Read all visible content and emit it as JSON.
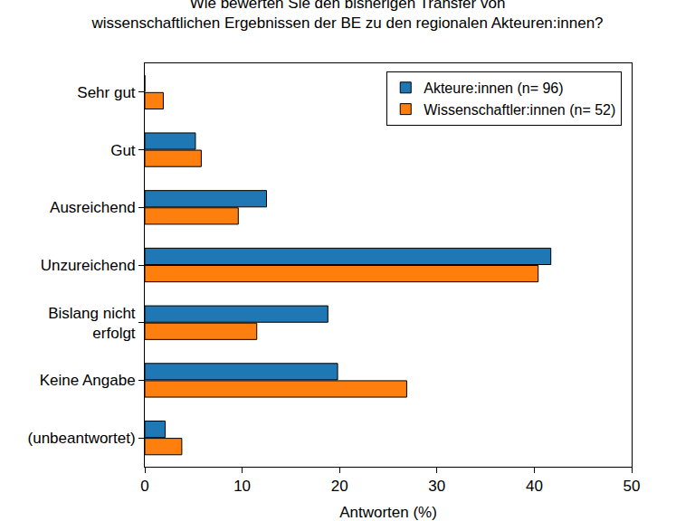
{
  "chart_data": {
    "type": "bar",
    "orientation": "horizontal",
    "title": "Wie bewerten Sie den bisherigen Transfer von\nwissenschaftlichen Ergebnissen der BE zu den regionalen Akteuren:innen?",
    "x_label": "Antworten (%)",
    "categories": [
      "Sehr gut",
      "Gut",
      "Ausreichend",
      "Unzureichend",
      "Bislang nicht\nerfolgt",
      "Keine Angabe",
      "(unbeantwortet)"
    ],
    "series": [
      {
        "name": "Akteure:innen (n= 96)",
        "color": "#1f77b4",
        "values": [
          0,
          5.2,
          12.5,
          41.7,
          18.8,
          19.8,
          2.1
        ]
      },
      {
        "name": "Wissenschaftler:innen (n= 52)",
        "color": "#ff7f0e",
        "values": [
          1.9,
          5.8,
          9.6,
          40.4,
          11.5,
          26.9,
          3.8
        ]
      }
    ],
    "xlim": [
      0,
      50
    ],
    "xticks": [
      0,
      10,
      20,
      30,
      40,
      50
    ],
    "grid": false,
    "legend": "top right"
  }
}
